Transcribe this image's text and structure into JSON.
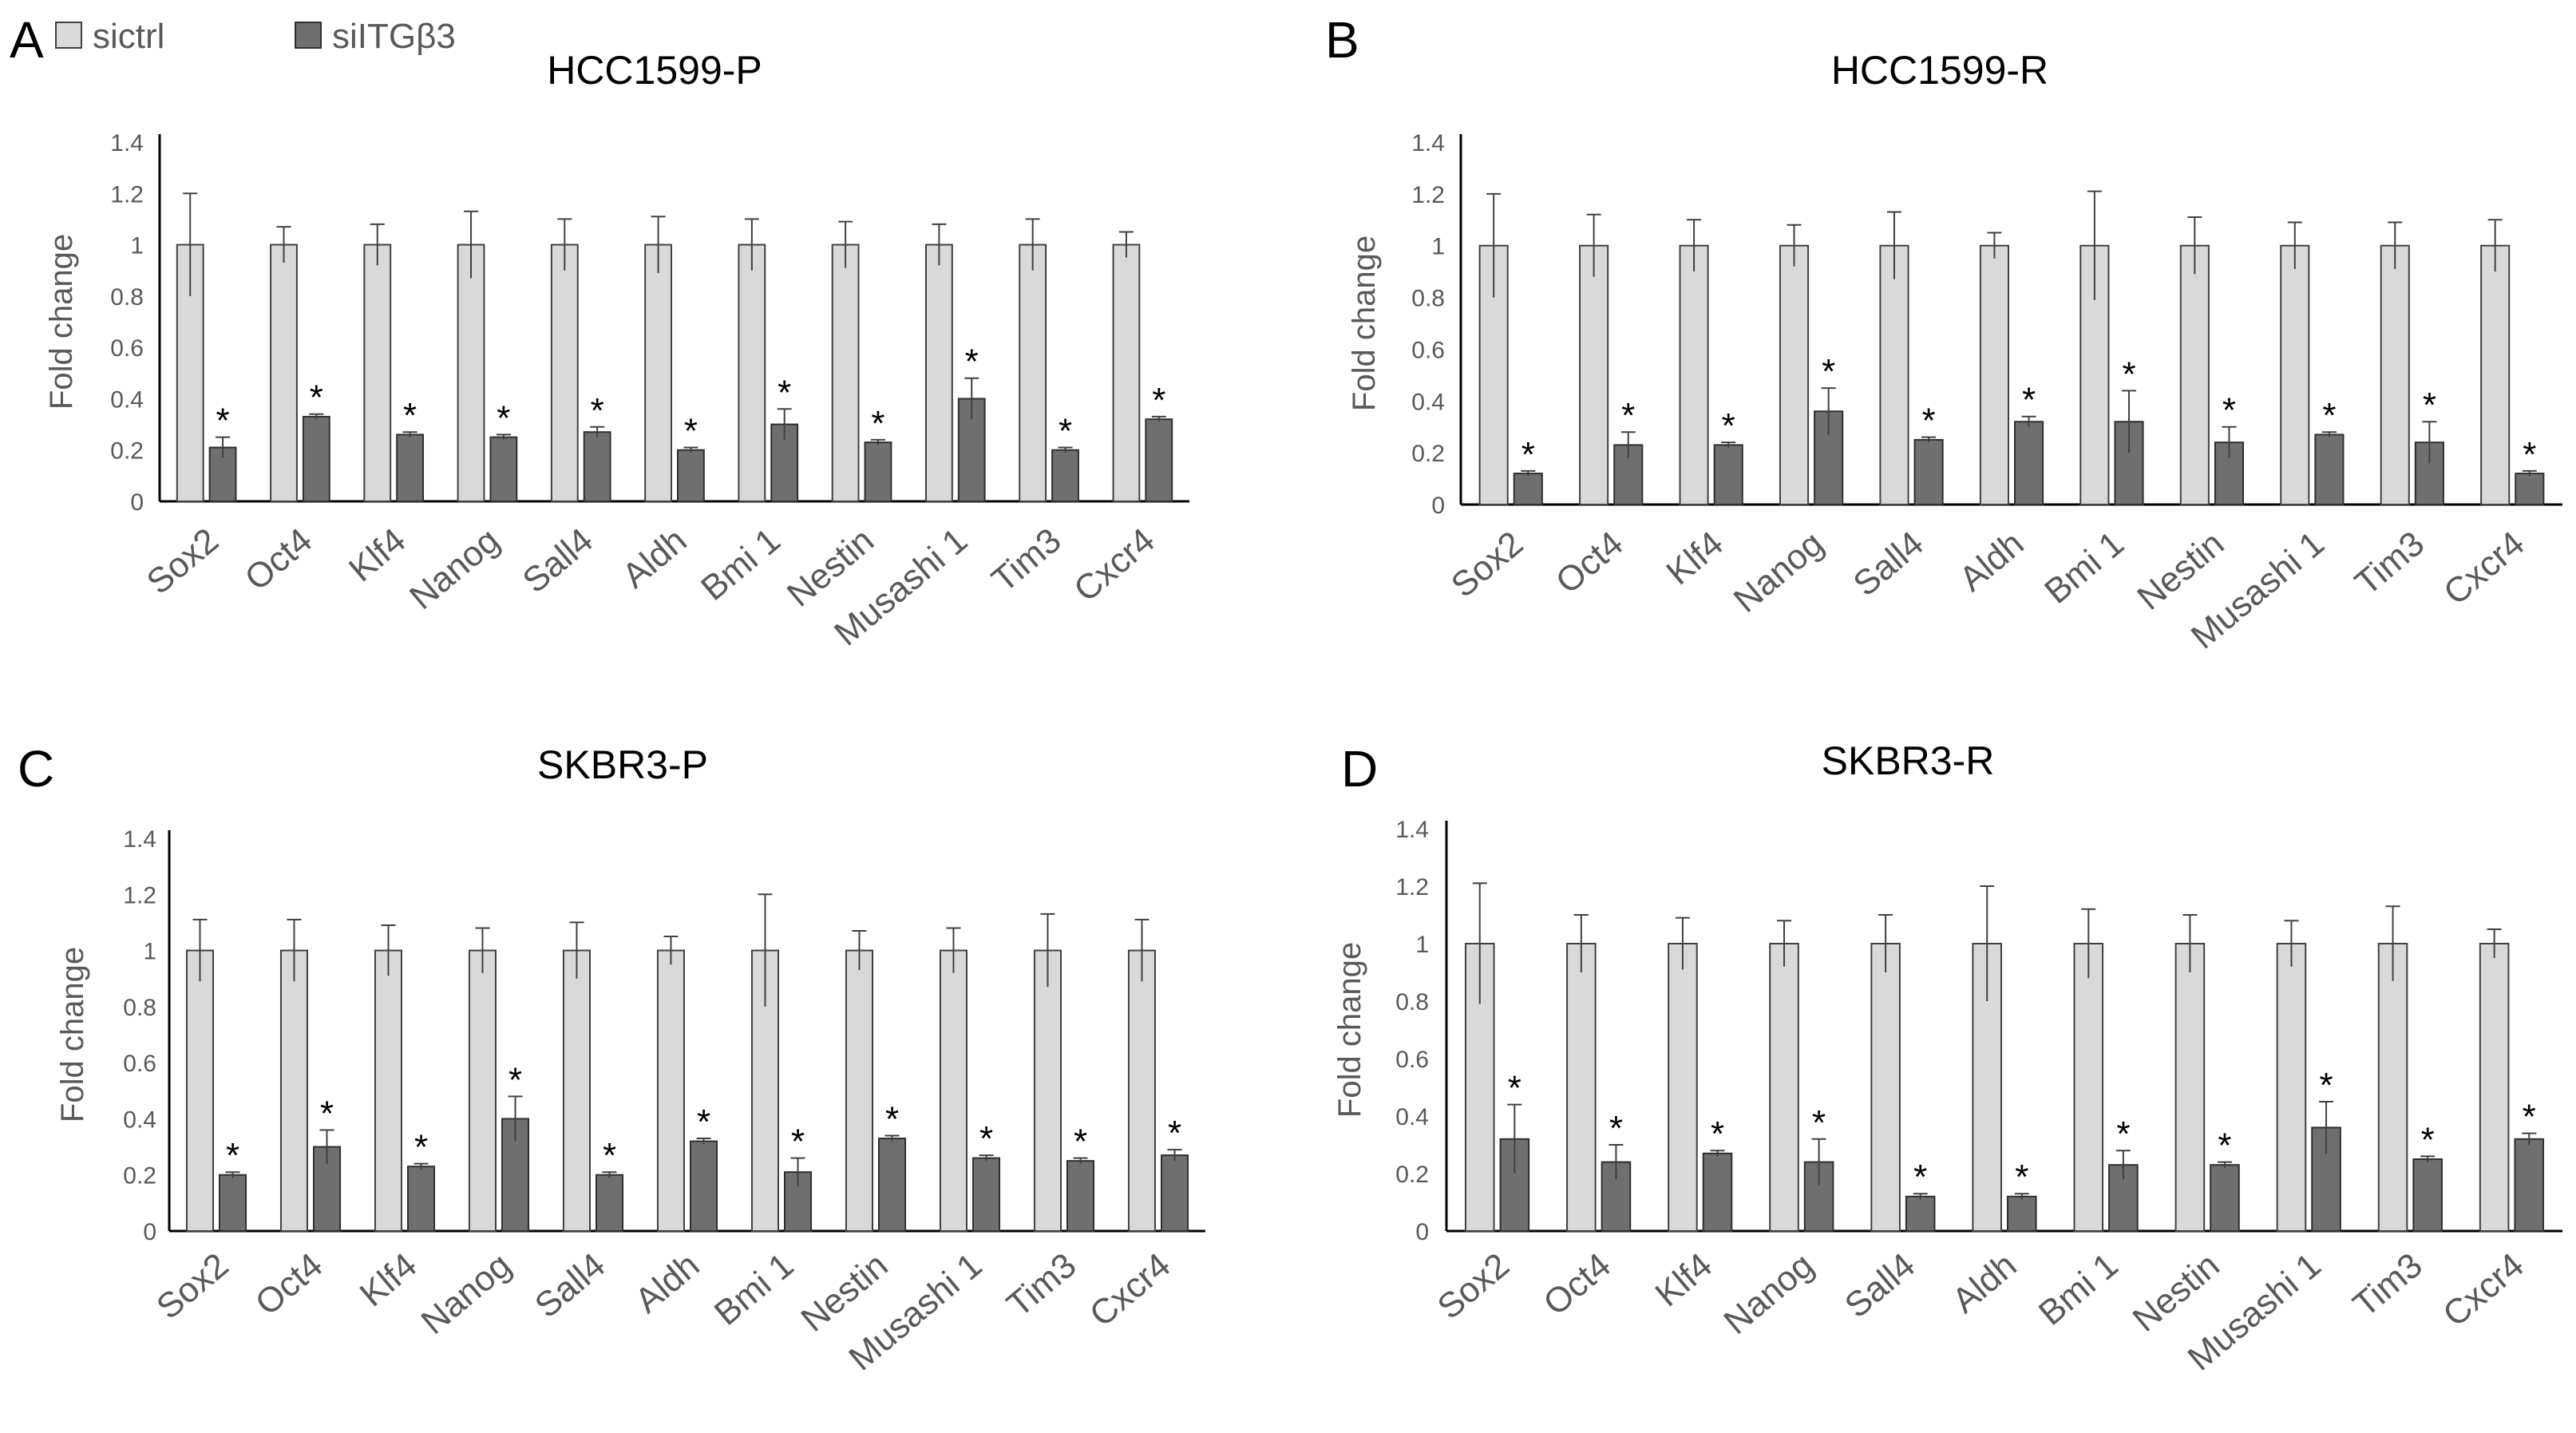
{
  "legend": {
    "items": [
      {
        "label": "sictrl",
        "color": "#d9d9d9"
      },
      {
        "label": "siITGβ3",
        "color": "#6f6f6f"
      }
    ]
  },
  "colors": {
    "ctrl": "#d9d9d9",
    "treat": "#6f6f6f",
    "axis": "#000000",
    "text": "#595959"
  },
  "chart_data": [
    {
      "type": "bar",
      "panel_label": "A",
      "title": "HCC1599-P",
      "ylabel": "Fold change",
      "xlabel": "",
      "ylim": [
        0,
        1.4
      ],
      "yticks": [
        "0",
        "0.2",
        "0.4",
        "0.6",
        "0.8",
        "1",
        "1.2",
        "1.4"
      ],
      "categories": [
        "Sox2",
        "Oct4",
        "Klf4",
        "Nanog",
        "Sall4",
        "Aldh",
        "Bmi 1",
        "Nestin",
        "Musashi 1",
        "Tim3",
        "Cxcr4"
      ],
      "series": [
        {
          "name": "sictrl",
          "values": [
            1,
            1,
            1,
            1,
            1,
            1,
            1,
            1,
            1,
            1,
            1
          ],
          "errors": [
            0.2,
            0.07,
            0.08,
            0.13,
            0.1,
            0.11,
            0.1,
            0.09,
            0.08,
            0.1,
            0.05
          ]
        },
        {
          "name": "siITGβ3",
          "values": [
            0.21,
            0.33,
            0.26,
            0.25,
            0.27,
            0.2,
            0.3,
            0.23,
            0.4,
            0.2,
            0.32
          ],
          "errors": [
            0.04,
            0.01,
            0.01,
            0.01,
            0.02,
            0.01,
            0.06,
            0.01,
            0.08,
            0.01,
            0.01
          ]
        }
      ],
      "annotations": [
        "*",
        "*",
        "*",
        "*",
        "*",
        "*",
        "*",
        "*",
        "*",
        "*",
        "*"
      ]
    },
    {
      "type": "bar",
      "panel_label": "B",
      "title": "HCC1599-R",
      "ylabel": "Fold change",
      "xlabel": "",
      "ylim": [
        0,
        1.4
      ],
      "yticks": [
        "0",
        "0.2",
        "0.4",
        "0.6",
        "0.8",
        "1",
        "1.2",
        "1.4"
      ],
      "categories": [
        "Sox2",
        "Oct4",
        "Klf4",
        "Nanog",
        "Sall4",
        "Aldh",
        "Bmi 1",
        "Nestin",
        "Musashi 1",
        "Tim3",
        "Cxcr4"
      ],
      "series": [
        {
          "name": "sictrl",
          "values": [
            1,
            1,
            1,
            1,
            1,
            1,
            1,
            1,
            1,
            1,
            1
          ],
          "errors": [
            0.2,
            0.12,
            0.1,
            0.08,
            0.13,
            0.05,
            0.21,
            0.11,
            0.09,
            0.09,
            0.1
          ]
        },
        {
          "name": "siITGβ3",
          "values": [
            0.12,
            0.23,
            0.23,
            0.36,
            0.25,
            0.32,
            0.32,
            0.24,
            0.27,
            0.24,
            0.12
          ],
          "errors": [
            0.01,
            0.05,
            0.01,
            0.09,
            0.01,
            0.02,
            0.12,
            0.06,
            0.01,
            0.08,
            0.01
          ]
        }
      ],
      "annotations": [
        "*",
        "*",
        "*",
        "*",
        "*",
        "*",
        "*",
        "*",
        "*",
        "*",
        "*"
      ]
    },
    {
      "type": "bar",
      "panel_label": "C",
      "title": "SKBR3-P",
      "ylabel": "Fold change",
      "xlabel": "",
      "ylim": [
        0,
        1.4
      ],
      "yticks": [
        "0",
        "0.2",
        "0.4",
        "0.6",
        "0.8",
        "1",
        "1.2",
        "1.4"
      ],
      "categories": [
        "Sox2",
        "Oct4",
        "Klf4",
        "Nanog",
        "Sall4",
        "Aldh",
        "Bmi 1",
        "Nestin",
        "Musashi 1",
        "Tim3",
        "Cxcr4"
      ],
      "series": [
        {
          "name": "sictrl",
          "values": [
            1,
            1,
            1,
            1,
            1,
            1,
            1,
            1,
            1,
            1,
            1
          ],
          "errors": [
            0.11,
            0.11,
            0.09,
            0.08,
            0.1,
            0.05,
            0.2,
            0.07,
            0.08,
            0.13,
            0.11
          ]
        },
        {
          "name": "siITGβ3",
          "values": [
            0.2,
            0.3,
            0.23,
            0.4,
            0.2,
            0.32,
            0.21,
            0.33,
            0.26,
            0.25,
            0.27
          ],
          "errors": [
            0.01,
            0.06,
            0.01,
            0.08,
            0.01,
            0.01,
            0.05,
            0.01,
            0.01,
            0.01,
            0.02
          ]
        }
      ],
      "annotations": [
        "*",
        "*",
        "*",
        "*",
        "*",
        "*",
        "*",
        "*",
        "*",
        "*",
        "*"
      ]
    },
    {
      "type": "bar",
      "panel_label": "D",
      "title": "SKBR3-R",
      "ylabel": "Fold change",
      "xlabel": "",
      "ylim": [
        0,
        1.4
      ],
      "yticks": [
        "0",
        "0.2",
        "0.4",
        "0.6",
        "0.8",
        "1",
        "1.2",
        "1.4"
      ],
      "categories": [
        "Sox2",
        "Oct4",
        "Klf4",
        "Nanog",
        "Sall4",
        "Aldh",
        "Bmi 1",
        "Nestin",
        "Musashi 1",
        "Tim3",
        "Cxcr4"
      ],
      "series": [
        {
          "name": "sictrl",
          "values": [
            1,
            1,
            1,
            1,
            1,
            1,
            1,
            1,
            1,
            1,
            1
          ],
          "errors": [
            0.21,
            0.1,
            0.09,
            0.08,
            0.1,
            0.2,
            0.12,
            0.1,
            0.08,
            0.13,
            0.05
          ]
        },
        {
          "name": "siITGβ3",
          "values": [
            0.32,
            0.24,
            0.27,
            0.24,
            0.12,
            0.12,
            0.23,
            0.23,
            0.36,
            0.25,
            0.32
          ],
          "errors": [
            0.12,
            0.06,
            0.01,
            0.08,
            0.01,
            0.01,
            0.05,
            0.01,
            0.09,
            0.01,
            0.02
          ]
        }
      ],
      "annotations": [
        "*",
        "*",
        "*",
        "*",
        "*",
        "*",
        "*",
        "*",
        "*",
        "*",
        "*"
      ]
    }
  ]
}
